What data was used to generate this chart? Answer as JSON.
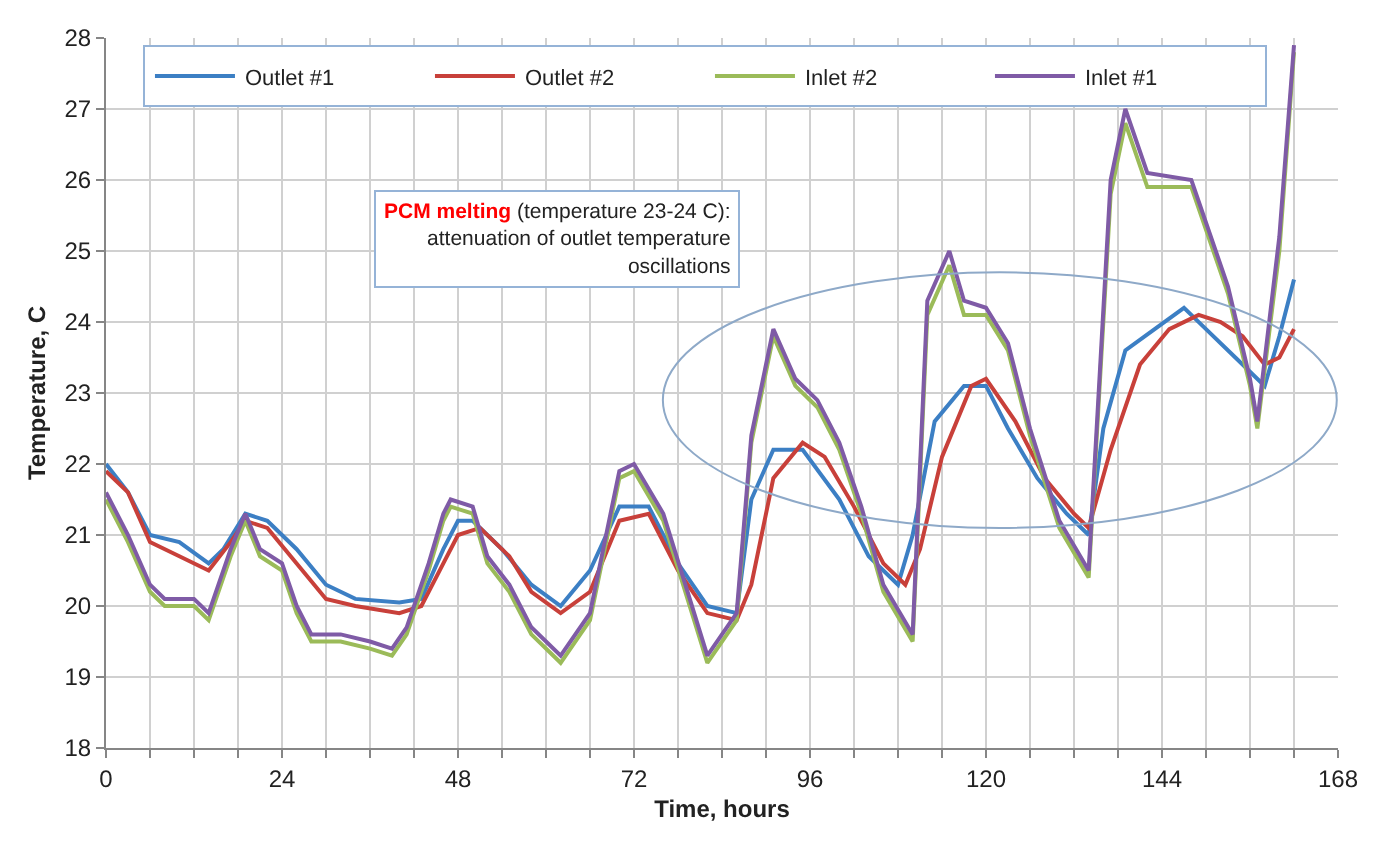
{
  "chart_data": {
    "type": "line",
    "xlabel": "Time, hours",
    "ylabel": "Temperature, C",
    "xlim": [
      0,
      168
    ],
    "ylim": [
      18,
      28
    ],
    "xticks": [
      0,
      {
        "value": 6,
        "label": null
      },
      {
        "value": 12,
        "label": null
      },
      {
        "value": 18,
        "label": null
      },
      24,
      {
        "value": 30,
        "label": null
      },
      {
        "value": 36,
        "label": null
      },
      {
        "value": 42,
        "label": null
      },
      48,
      {
        "value": 54,
        "label": null
      },
      {
        "value": 60,
        "label": null
      },
      {
        "value": 66,
        "label": null
      },
      72,
      {
        "value": 78,
        "label": null
      },
      {
        "value": 84,
        "label": null
      },
      {
        "value": 90,
        "label": null
      },
      96,
      {
        "value": 102,
        "label": null
      },
      {
        "value": 108,
        "label": null
      },
      {
        "value": 114,
        "label": null
      },
      120,
      {
        "value": 126,
        "label": null
      },
      {
        "value": 132,
        "label": null
      },
      {
        "value": 138,
        "label": null
      },
      144,
      {
        "value": 150,
        "label": null
      },
      {
        "value": 156,
        "label": null
      },
      {
        "value": 162,
        "label": null
      },
      168
    ],
    "yticks": [
      18,
      19,
      20,
      21,
      22,
      23,
      24,
      25,
      26,
      27,
      28
    ],
    "grid": true,
    "legend": "top",
    "marker": "none",
    "line_style": "solid",
    "annotations": [
      "PCM melting",
      "(temperature 23-24 C):\nattenuation of outlet temperature\noscillations"
    ],
    "series": [
      {
        "name": "Outlet #1",
        "color": "#3c7fc4",
        "x": [
          0,
          3,
          6,
          10,
          14,
          16,
          19,
          22,
          26,
          30,
          34,
          40,
          43,
          46,
          48,
          50,
          54,
          58,
          62,
          66,
          70,
          74,
          78,
          82,
          86,
          88,
          91,
          95,
          100,
          104,
          108,
          110,
          113,
          117,
          120,
          123,
          127,
          131,
          134,
          136,
          139,
          143,
          147,
          150,
          154,
          158,
          160,
          162
        ],
        "values": [
          22.0,
          21.6,
          21.0,
          20.9,
          20.6,
          20.8,
          21.3,
          21.2,
          20.8,
          20.3,
          20.1,
          20.05,
          20.1,
          20.8,
          21.2,
          21.2,
          20.8,
          20.3,
          20.0,
          20.5,
          21.4,
          21.4,
          20.6,
          20.0,
          19.9,
          21.5,
          22.2,
          22.2,
          21.5,
          20.7,
          20.3,
          21.0,
          22.6,
          23.1,
          23.1,
          22.5,
          21.8,
          21.3,
          21.0,
          22.5,
          23.6,
          23.9,
          24.2,
          23.9,
          23.5,
          23.1,
          23.8,
          24.6
        ]
      },
      {
        "name": "Outlet #2",
        "color": "#c8403a",
        "x": [
          0,
          3,
          6,
          10,
          14,
          17,
          19,
          22,
          26,
          30,
          34,
          40,
          43,
          46,
          48,
          51,
          55,
          58,
          62,
          66,
          70,
          74,
          78,
          82,
          86,
          88,
          91,
          95,
          98,
          102,
          106,
          109,
          111,
          114,
          118,
          120,
          124,
          128,
          132,
          134,
          137,
          141,
          145,
          149,
          152,
          155,
          158,
          160,
          162
        ],
        "values": [
          21.9,
          21.6,
          20.9,
          20.7,
          20.5,
          20.9,
          21.2,
          21.1,
          20.6,
          20.1,
          20.0,
          19.9,
          20.0,
          20.6,
          21.0,
          21.1,
          20.7,
          20.2,
          19.9,
          20.2,
          21.2,
          21.3,
          20.5,
          19.9,
          19.8,
          20.3,
          21.8,
          22.3,
          22.1,
          21.4,
          20.6,
          20.3,
          20.8,
          22.1,
          23.1,
          23.2,
          22.6,
          21.8,
          21.3,
          21.1,
          22.2,
          23.4,
          23.9,
          24.1,
          24.0,
          23.8,
          23.4,
          23.5,
          23.9
        ]
      },
      {
        "name": "Inlet #2",
        "color": "#9bbb59",
        "x": [
          0,
          3,
          6,
          8,
          12,
          14,
          17,
          19,
          21,
          24,
          26,
          28,
          32,
          36,
          39,
          41,
          44,
          46,
          47,
          50,
          52,
          55,
          58,
          62,
          66,
          70,
          72,
          76,
          79,
          82,
          86,
          88,
          91,
          94,
          97,
          100,
          103,
          106,
          110,
          112,
          115,
          117,
          120,
          123,
          126,
          130,
          134,
          137,
          139,
          142,
          148,
          153,
          156,
          157,
          160,
          162
        ],
        "values": [
          21.5,
          20.9,
          20.2,
          20.0,
          20.0,
          19.8,
          20.7,
          21.2,
          20.7,
          20.5,
          19.9,
          19.5,
          19.5,
          19.4,
          19.3,
          19.6,
          20.5,
          21.2,
          21.4,
          21.3,
          20.6,
          20.2,
          19.6,
          19.2,
          19.8,
          21.8,
          21.9,
          21.2,
          20.2,
          19.2,
          19.8,
          22.3,
          23.8,
          23.1,
          22.8,
          22.2,
          21.3,
          20.2,
          19.5,
          24.1,
          24.8,
          24.1,
          24.1,
          23.6,
          22.4,
          21.1,
          20.4,
          25.8,
          26.8,
          25.9,
          25.9,
          24.4,
          23.1,
          22.5,
          25.0,
          27.8
        ]
      },
      {
        "name": "Inlet #1",
        "color": "#7f5ba6",
        "x": [
          0,
          3,
          6,
          8,
          12,
          14,
          17,
          19,
          21,
          24,
          26,
          28,
          32,
          36,
          39,
          41,
          44,
          46,
          47,
          50,
          52,
          55,
          58,
          62,
          66,
          70,
          72,
          76,
          79,
          82,
          86,
          88,
          91,
          94,
          97,
          100,
          103,
          106,
          110,
          112,
          115,
          117,
          120,
          123,
          126,
          130,
          134,
          137,
          139,
          142,
          148,
          153,
          156,
          157,
          160,
          162
        ],
        "values": [
          21.6,
          21.0,
          20.3,
          20.1,
          20.1,
          19.9,
          20.8,
          21.3,
          20.8,
          20.6,
          20.0,
          19.6,
          19.6,
          19.5,
          19.4,
          19.7,
          20.6,
          21.3,
          21.5,
          21.4,
          20.7,
          20.3,
          19.7,
          19.3,
          19.9,
          21.9,
          22.0,
          21.3,
          20.3,
          19.3,
          19.9,
          22.4,
          23.9,
          23.2,
          22.9,
          22.3,
          21.4,
          20.3,
          19.6,
          24.3,
          25.0,
          24.3,
          24.2,
          23.7,
          22.5,
          21.2,
          20.5,
          26.0,
          27.0,
          26.1,
          26.0,
          24.5,
          23.2,
          22.6,
          25.2,
          27.9
        ]
      }
    ]
  }
}
